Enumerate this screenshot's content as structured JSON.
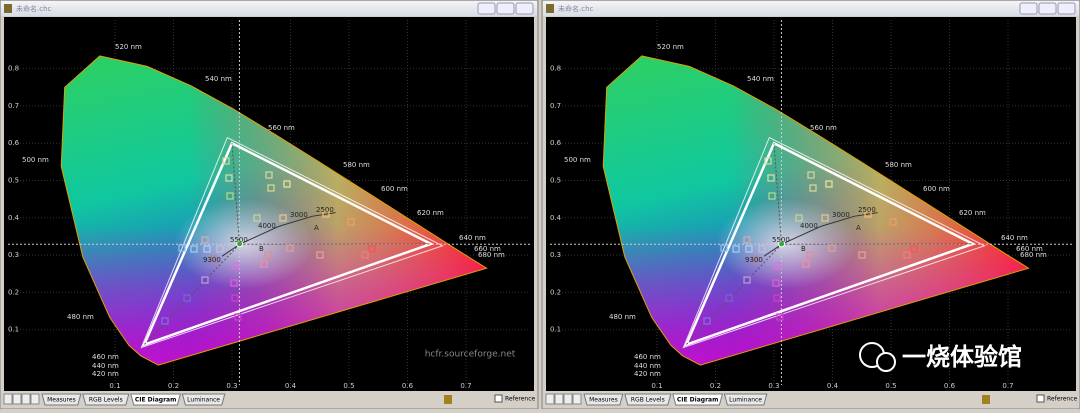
{
  "windows": [
    {
      "title": "未命名.chc",
      "xticks": [
        "0.1",
        "0.2",
        "0.3",
        "0.4",
        "0.5",
        "0.6",
        "0.7"
      ],
      "yticks": [
        "0.1",
        "0.2",
        "0.3",
        "0.4",
        "0.5",
        "0.6",
        "0.7",
        "0.8"
      ],
      "wavelengths": [
        "520 nm",
        "540 nm",
        "560 nm",
        "580 nm",
        "600 nm",
        "620 nm",
        "640 nm",
        "660 nm",
        "680 nm",
        "500 nm",
        "480 nm",
        "460 nm",
        "440 nm",
        "420 nm"
      ],
      "cct": [
        "9300",
        "5500",
        "4000",
        "3000",
        "2500",
        "A",
        "B"
      ],
      "tabs": [
        "Measures",
        "RGB Levels",
        "CIE Diagram",
        "Luminance"
      ],
      "reference": "Reference",
      "watermark": "hcfr.sourceforge.net"
    },
    {
      "title": "未命名.chc",
      "xticks": [
        "0.1",
        "0.2",
        "0.3",
        "0.4",
        "0.5",
        "0.6",
        "0.7"
      ],
      "yticks": [
        "0.1",
        "0.2",
        "0.3",
        "0.4",
        "0.5",
        "0.6",
        "0.7",
        "0.8"
      ],
      "wavelengths": [
        "520 nm",
        "540 nm",
        "560 nm",
        "580 nm",
        "600 nm",
        "620 nm",
        "640 nm",
        "660 nm",
        "680 nm",
        "500 nm",
        "480 nm",
        "460 nm",
        "440 nm",
        "420 nm"
      ],
      "cct": [
        "9300",
        "5500",
        "4000",
        "3000",
        "2500",
        "A",
        "B"
      ],
      "tabs": [
        "Measures",
        "RGB Levels",
        "CIE Diagram",
        "Luminance"
      ],
      "reference": "Reference",
      "watermark": "一烧体验馆"
    }
  ]
}
